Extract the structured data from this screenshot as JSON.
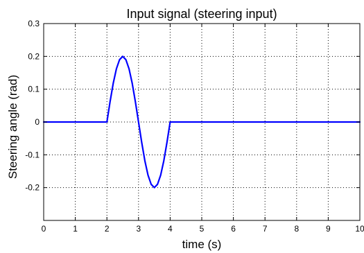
{
  "chart_data": {
    "type": "line",
    "title": "Input signal (steering input)",
    "xlabel": "time (s)",
    "ylabel": "Steering angle (rad)",
    "xlim": [
      0,
      10
    ],
    "ylim": [
      -0.3,
      0.3
    ],
    "xticks": [
      "0",
      "1",
      "2",
      "3",
      "4",
      "5",
      "6",
      "7",
      "8",
      "9",
      "10"
    ],
    "yticks": [
      "0.3",
      "0.2",
      "0.1",
      "0",
      "-0.1",
      "-0.2"
    ],
    "grid": true,
    "series": [
      {
        "color": "#0000ff",
        "x": [
          0,
          2.0,
          2.1,
          2.2,
          2.3,
          2.4,
          2.5,
          2.6,
          2.7,
          2.8,
          2.9,
          3.0,
          3.1,
          3.2,
          3.3,
          3.4,
          3.5,
          3.6,
          3.7,
          3.8,
          3.9,
          4.0,
          10
        ],
        "y": [
          0,
          0,
          0.062,
          0.118,
          0.162,
          0.19,
          0.2,
          0.19,
          0.162,
          0.118,
          0.062,
          0,
          -0.062,
          -0.118,
          -0.162,
          -0.19,
          -0.2,
          -0.19,
          -0.162,
          -0.118,
          -0.062,
          0,
          0
        ]
      }
    ]
  }
}
